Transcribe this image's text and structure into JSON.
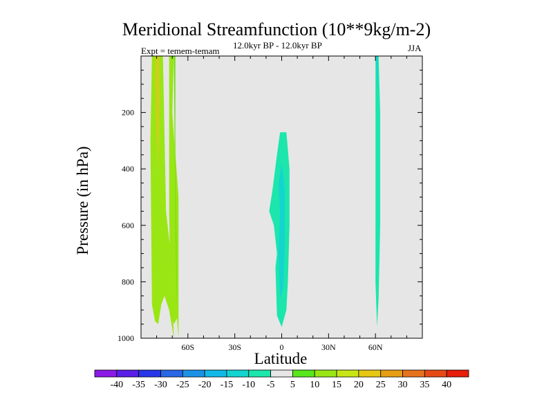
{
  "chart_data": {
    "type": "contour",
    "title": "Meridional Streamfunction (10**9kg/m-2)",
    "subtitle_left": "Expt = temem-temam",
    "subtitle_center": "12.0kyr BP - 12.0kyr BP",
    "subtitle_right": "JJA",
    "xlabel": "Latitude",
    "ylabel": "Pressure (in hPa)",
    "xlim": [
      -90,
      90
    ],
    "ylim": [
      0,
      1000
    ],
    "y_inverted": true,
    "x_ticks": [
      -60,
      -30,
      0,
      30,
      60
    ],
    "x_tick_labels": [
      "60S",
      "30S",
      "0",
      "30N",
      "60N"
    ],
    "y_ticks": [
      200,
      400,
      600,
      800,
      1000
    ],
    "y_tick_labels": [
      "200",
      "400",
      "600",
      "800",
      "1000"
    ],
    "background_color": "#e6e6e6",
    "colorbar": {
      "levels": [
        "-40",
        "-35",
        "-30",
        "-25",
        "-20",
        "-15",
        "-10",
        "-5",
        "5",
        "10",
        "15",
        "20",
        "25",
        "30",
        "35",
        "40"
      ],
      "colors": [
        "#8a1ae6",
        "#5a1ee6",
        "#2838e6",
        "#2a66e6",
        "#1c92e6",
        "#12b8e6",
        "#14d4d0",
        "#1ce6ac",
        "#e6e6e6",
        "#58e61c",
        "#9ae614",
        "#c8e614",
        "#e6c814",
        "#e69e14",
        "#e6721e",
        "#e64a14",
        "#e61e0a"
      ]
    },
    "regions": [
      {
        "name": "southern-high-latitude-band",
        "value_range": "10 to 20",
        "color": "#9ae614",
        "points": [
          [
            -83,
            0
          ],
          [
            -76,
            0
          ],
          [
            -74,
            550
          ],
          [
            -71,
            700
          ],
          [
            -69,
            1000
          ],
          [
            -72,
            900
          ],
          [
            -75,
            850
          ],
          [
            -77,
            880
          ],
          [
            -79,
            950
          ],
          [
            -81,
            940
          ],
          [
            -83,
            880
          ],
          [
            -84,
            300
          ]
        ]
      },
      {
        "name": "southern-high-latitude-core",
        "value_range": "20 to 25",
        "color": "#c8d21a",
        "points": [
          [
            -81,
            0
          ],
          [
            -78,
            0
          ],
          [
            -78,
            180
          ],
          [
            -79,
            420
          ],
          [
            -80,
            300
          ],
          [
            -81,
            100
          ]
        ]
      },
      {
        "name": "southern-secondary-band",
        "value_range": "10 to 15",
        "color": "#9ae614",
        "points": [
          [
            -72,
            0
          ],
          [
            -69,
            0
          ],
          [
            -70,
            200
          ],
          [
            -66,
            500
          ],
          [
            -66,
            1000
          ],
          [
            -67,
            930
          ],
          [
            -69,
            950
          ],
          [
            -71,
            900
          ],
          [
            -72,
            550
          ]
        ]
      },
      {
        "name": "southern-secondary-core",
        "value_range": "5 to 10",
        "color": "#70dc1e",
        "points": [
          [
            -69,
            0
          ],
          [
            -68,
            0
          ],
          [
            -68,
            400
          ],
          [
            -67,
            800
          ],
          [
            -67,
            900
          ],
          [
            -68,
            600
          ]
        ]
      },
      {
        "name": "equatorial-cell",
        "value_range": "-10 to -5",
        "color": "#1ce6ac",
        "points": [
          [
            -1,
            270
          ],
          [
            3,
            270
          ],
          [
            5,
            400
          ],
          [
            5,
            600
          ],
          [
            4,
            800
          ],
          [
            3,
            900
          ],
          [
            1,
            940
          ],
          [
            0,
            960
          ],
          [
            -3,
            920
          ],
          [
            -4,
            750
          ],
          [
            -3,
            700
          ],
          [
            -5,
            600
          ],
          [
            -8,
            550
          ],
          [
            -6,
            480
          ],
          [
            -3,
            350
          ]
        ]
      },
      {
        "name": "equatorial-cell-core",
        "value_range": "-15 to -10",
        "color": "#14d4d0",
        "points": [
          [
            0,
            380
          ],
          [
            2,
            480
          ],
          [
            2,
            650
          ],
          [
            1,
            820
          ],
          [
            -1,
            860
          ],
          [
            -2,
            700
          ],
          [
            -1,
            550
          ],
          [
            -2,
            450
          ]
        ]
      },
      {
        "name": "northern-high-latitude-band",
        "value_range": "-10 to -5",
        "color": "#1ce6ac",
        "points": [
          [
            60,
            0
          ],
          [
            62,
            0
          ],
          [
            63,
            200
          ],
          [
            63,
            600
          ],
          [
            62,
            860
          ],
          [
            61,
            960
          ],
          [
            60,
            800
          ],
          [
            60,
            400
          ]
        ]
      },
      {
        "name": "northern-high-latitude-core",
        "value_range": "-15 to -10",
        "color": "#14d4d0",
        "points": [
          [
            60.5,
            0
          ],
          [
            61.5,
            0
          ],
          [
            61.5,
            80
          ],
          [
            61,
            120
          ]
        ]
      }
    ]
  }
}
